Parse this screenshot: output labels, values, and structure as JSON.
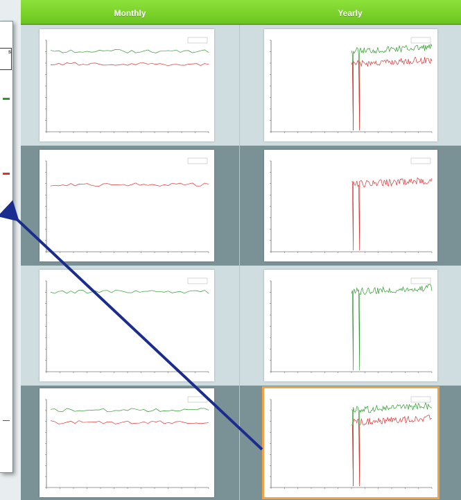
{
  "header": {
    "col_monthly": "Monthly",
    "col_yearly": "Yearly"
  },
  "left_panel": {
    "box_text": "s"
  },
  "colors": {
    "green": "#2a9a2a",
    "red": "#e03030",
    "header": "#7fd62f",
    "highlight": "#f2a240",
    "arrow": "#1a2d8f"
  },
  "rows": [
    {
      "monthly": {
        "series": [
          "green",
          "red"
        ]
      },
      "yearly": {
        "series": [
          "green",
          "red"
        ]
      }
    },
    {
      "monthly": {
        "series": [
          "red"
        ]
      },
      "yearly": {
        "series": [
          "red"
        ]
      }
    },
    {
      "monthly": {
        "series": [
          "green"
        ]
      },
      "yearly": {
        "series": [
          "green"
        ]
      }
    },
    {
      "monthly": {
        "series": [
          "green",
          "red"
        ]
      },
      "yearly": {
        "series": [
          "green",
          "red"
        ],
        "selected": true
      }
    }
  ]
}
